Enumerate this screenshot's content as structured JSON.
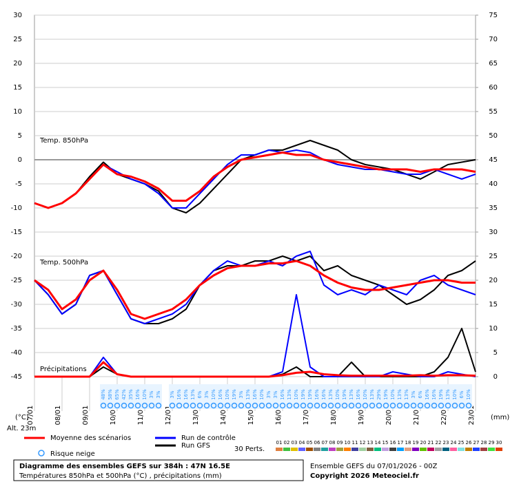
{
  "chart_data": {
    "type": "line",
    "panel_labels": {
      "t850": "Temp. 850hPa",
      "t500": "Temp. 500hPa",
      "precip": "Précipitations"
    },
    "y_unit": "(°C)",
    "y2_unit": "(mm)",
    "altitude": "Alt. 23m",
    "x": [
      0,
      12,
      24,
      36,
      48,
      60,
      72,
      84,
      96,
      108,
      120,
      132,
      144,
      156,
      168,
      180,
      192,
      204,
      216,
      228,
      240,
      252,
      264,
      276,
      288,
      300,
      312,
      324,
      336,
      348,
      360,
      372,
      384
    ],
    "xlim": [
      0,
      384
    ],
    "xticks": [
      {
        "value": 0,
        "label": "07/01"
      },
      {
        "value": 24,
        "label": "08/01"
      },
      {
        "value": 48,
        "label": "09/01"
      },
      {
        "value": 72,
        "label": "10/01"
      },
      {
        "value": 96,
        "label": "11/01"
      },
      {
        "value": 120,
        "label": "12/01"
      },
      {
        "value": 144,
        "label": "13/01"
      },
      {
        "value": 168,
        "label": "14/01"
      },
      {
        "value": 192,
        "label": "15/01"
      },
      {
        "value": 216,
        "label": "16/01"
      },
      {
        "value": 240,
        "label": "17/01"
      },
      {
        "value": 264,
        "label": "18/01"
      },
      {
        "value": 288,
        "label": "19/01"
      },
      {
        "value": 312,
        "label": "20/01"
      },
      {
        "value": 336,
        "label": "21/01"
      },
      {
        "value": 360,
        "label": "22/01"
      },
      {
        "value": 384,
        "label": "23/01"
      }
    ],
    "ylim": [
      -45,
      30
    ],
    "yticks": [
      -45,
      -40,
      -35,
      -30,
      -25,
      -20,
      -15,
      -10,
      -5,
      0,
      5,
      10,
      15,
      20,
      25,
      30
    ],
    "y2lim": [
      0,
      75
    ],
    "y2ticks": [
      0,
      5,
      10,
      15,
      20,
      25,
      30,
      35,
      40,
      45,
      50,
      55,
      60,
      65,
      70,
      75
    ],
    "grid": true,
    "series": [
      {
        "name": "Moyenne des scénarios",
        "color": "#ff0000",
        "t850": [
          -9,
          -10,
          -9,
          -7,
          -4,
          -1,
          -3,
          -3.5,
          -4.5,
          -6,
          -8.5,
          -8.5,
          -6.5,
          -3.5,
          -1.5,
          0,
          0.5,
          1,
          1.5,
          1,
          1,
          0,
          -0.5,
          -1,
          -1.5,
          -2,
          -2,
          -2,
          -2.5,
          -2,
          -2,
          -2,
          -2.5
        ],
        "t500": [
          -25,
          -27,
          -31,
          -29,
          -25,
          -23,
          -27,
          -32,
          -33,
          -32,
          -31,
          -29,
          -26,
          -24,
          -22.5,
          -22,
          -22,
          -21.5,
          -21.5,
          -21,
          -22,
          -24,
          -25.5,
          -26.5,
          -27,
          -27,
          -26.5,
          -26,
          -25.5,
          -25,
          -25,
          -25.5,
          -25.5
        ],
        "precip": [
          0,
          0,
          0,
          0,
          0,
          3,
          0.5,
          0,
          0,
          0,
          0,
          0,
          0,
          0,
          0,
          0,
          0,
          0,
          0.3,
          0.8,
          1,
          0.5,
          0.3,
          0.2,
          0.2,
          0.2,
          0.2,
          0.2,
          0.3,
          0.2,
          0.3,
          0.3,
          0.2
        ]
      },
      {
        "name": "Run de contrôle",
        "color": "#0000ff",
        "t850": [
          -9,
          -10,
          -9,
          -7,
          -4,
          -1,
          -2.5,
          -4,
          -5,
          -7,
          -10,
          -10,
          -7,
          -4,
          -1,
          1,
          1,
          2,
          1.5,
          2,
          1.5,
          0,
          -1,
          -1.5,
          -2,
          -2,
          -2.5,
          -3,
          -3,
          -2,
          -3,
          -4,
          -3
        ],
        "t500": [
          -25,
          -28,
          -32,
          -30,
          -24,
          -23,
          -28,
          -33,
          -34,
          -33,
          -32,
          -30,
          -26,
          -23,
          -21,
          -22,
          -22,
          -21,
          -22,
          -20,
          -19,
          -26,
          -28,
          -27,
          -28,
          -26,
          -27,
          -28,
          -25,
          -24,
          -26,
          -27,
          -28
        ],
        "precip": [
          0,
          0,
          0,
          0,
          0,
          4,
          0.5,
          0,
          0,
          0,
          0,
          0,
          0,
          0,
          0,
          0,
          0,
          0,
          1,
          17,
          2,
          0,
          0,
          0,
          0,
          0,
          1,
          0.5,
          0,
          0,
          1,
          0.5,
          0
        ]
      },
      {
        "name": "Run GFS",
        "color": "#000000",
        "t850": [
          -9,
          -10,
          -9,
          -7,
          -3.5,
          -0.5,
          -3,
          -4,
          -5,
          -6.5,
          -10,
          -11,
          -9,
          -6,
          -3,
          0,
          1,
          2,
          2,
          3,
          4,
          3,
          2,
          0,
          -1,
          -1.5,
          -2,
          -3,
          -4,
          -2.5,
          -1,
          -0.5,
          0
        ],
        "t500": [
          -25,
          -28,
          -32,
          -30,
          -24,
          -23,
          -28,
          -33,
          -34,
          -34,
          -33,
          -31,
          -26,
          -23,
          -22,
          -22,
          -21,
          -21,
          -20,
          -21,
          -20,
          -23,
          -22,
          -24,
          -25,
          -26,
          -28,
          -30,
          -29,
          -27,
          -24,
          -23,
          -21
        ],
        "precip": [
          0,
          0,
          0,
          0,
          0,
          2,
          0.5,
          0,
          0,
          0,
          0,
          0,
          0,
          0,
          0,
          0,
          0,
          0,
          0.5,
          2,
          0,
          0,
          0,
          3,
          0,
          0,
          0,
          0,
          0,
          1,
          4,
          10,
          1
        ]
      }
    ],
    "snow": {
      "name": "Risque neige",
      "x": [
        60,
        66,
        72,
        78,
        84,
        90,
        96,
        102,
        108,
        120,
        126,
        132,
        138,
        144,
        150,
        156,
        162,
        168,
        174,
        180,
        186,
        192,
        198,
        204,
        210,
        216,
        222,
        228,
        234,
        240,
        246,
        252,
        258,
        264,
        270,
        276,
        282,
        288,
        294,
        300,
        306,
        312,
        318,
        324,
        330,
        336,
        342,
        348,
        354,
        360,
        366,
        372,
        378
      ],
      "values": [
        48,
        58,
        65,
        42,
        35,
        16,
        10,
        3,
        3,
        3,
        16,
        16,
        13,
        6,
        3,
        10,
        16,
        10,
        19,
        3,
        13,
        16,
        10,
        3,
        3,
        16,
        13,
        10,
        19,
        19,
        16,
        16,
        13,
        10,
        19,
        13,
        16,
        10,
        13,
        29,
        19,
        10,
        13,
        13,
        3,
        6,
        16,
        16,
        19,
        13,
        10,
        6,
        10
      ],
      "value_labels": [
        "48%",
        "58%",
        "65%",
        "42%",
        "35%",
        "16%",
        "10%",
        "3%",
        "3%",
        "3%",
        "16%",
        "16%",
        "13%",
        "6%",
        "3%",
        "10%",
        "16%",
        "10%",
        "19%",
        "3%",
        "13%",
        "16%",
        "10%",
        "3%",
        "3%",
        "16%",
        "13%",
        "10%",
        "19%",
        "19%",
        "16%",
        "16%",
        "13%",
        "10%",
        "19%",
        "13%",
        "16%",
        "10%",
        "13%",
        "29%",
        "19%",
        "10%",
        "13%",
        "13%",
        "3%",
        "6%",
        "16%",
        "16%",
        "19%",
        "13%",
        "10%",
        "6%",
        "10%"
      ]
    },
    "perturbations": {
      "title": "30 Perts.",
      "members": [
        {
          "label": "01",
          "color": "#e08040"
        },
        {
          "label": "02",
          "color": "#40c040"
        },
        {
          "label": "03",
          "color": "#e0c000"
        },
        {
          "label": "04",
          "color": "#6060ff"
        },
        {
          "label": "05",
          "color": "#a05000"
        },
        {
          "label": "06",
          "color": "#808080"
        },
        {
          "label": "07",
          "color": "#20a0a0"
        },
        {
          "label": "08",
          "color": "#c040c0"
        },
        {
          "label": "09",
          "color": "#a0a040"
        },
        {
          "label": "10",
          "color": "#ff8000"
        },
        {
          "label": "11",
          "color": "#4040a0"
        },
        {
          "label": "12",
          "color": "#a0d0a0"
        },
        {
          "label": "13",
          "color": "#806040"
        },
        {
          "label": "14",
          "color": "#00c080"
        },
        {
          "label": "15",
          "color": "#c0a0e0"
        },
        {
          "label": "16",
          "color": "#404040"
        },
        {
          "label": "17",
          "color": "#00a0ff"
        },
        {
          "label": "18",
          "color": "#e0a080"
        },
        {
          "label": "19",
          "color": "#8000c0"
        },
        {
          "label": "20",
          "color": "#60c000"
        },
        {
          "label": "21",
          "color": "#c00060"
        },
        {
          "label": "22",
          "color": "#a0a0a0"
        },
        {
          "label": "23",
          "color": "#006080"
        },
        {
          "label": "24",
          "color": "#ff60a0"
        },
        {
          "label": "25",
          "color": "#80e0e0"
        },
        {
          "label": "26",
          "color": "#c08000"
        },
        {
          "label": "27",
          "color": "#2040ff"
        },
        {
          "label": "28",
          "color": "#a04040"
        },
        {
          "label": "29",
          "color": "#40e040"
        },
        {
          "label": "30",
          "color": "#e04000"
        }
      ]
    },
    "footer": {
      "title": "Diagramme des ensembles GEFS sur 384h : 47N 16.5E",
      "subtitle": "Températures 850hPa et 500hPa (°C) , précipitations (mm)",
      "run": "Ensemble GEFS du 07/01/2026 - 00Z",
      "copyright": "Copyright 2026 Meteociel.fr"
    }
  }
}
